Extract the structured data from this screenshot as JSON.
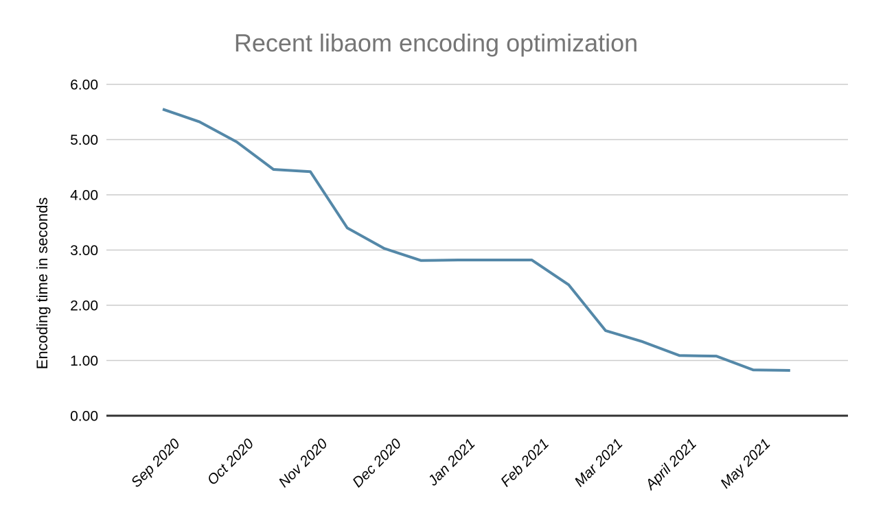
{
  "chart_data": {
    "type": "line",
    "title": "Recent libaom encoding optimization",
    "ylabel": "Encoding time in seconds",
    "xlabel": "",
    "legend": "none",
    "grid": "horizontal",
    "ylim": [
      0,
      6
    ],
    "y_ticks": [
      0,
      1,
      2,
      3,
      4,
      5,
      6
    ],
    "y_tick_labels": [
      "0.00",
      "1.00",
      "2.00",
      "3.00",
      "4.00",
      "5.00",
      "6.00"
    ],
    "x_tick_labels": [
      "Sep 2020",
      "Oct 2020",
      "Nov 2020",
      "Dec 2020",
      "Jan 2021",
      "Feb 2021",
      "Mar 2021",
      "April 2021",
      "May 2021"
    ],
    "series": [
      {
        "name": "Encoding time",
        "x": [
          0,
          0.5,
          1,
          1.5,
          2,
          2.5,
          3,
          3.5,
          4,
          4.5,
          5,
          5.5,
          6,
          6.5,
          7,
          7.5,
          8,
          8.5
        ],
        "values": [
          5.55,
          5.32,
          4.96,
          4.46,
          4.42,
          3.4,
          3.03,
          2.81,
          2.82,
          2.82,
          2.82,
          2.37,
          1.54,
          1.34,
          1.09,
          1.08,
          0.83,
          0.82
        ]
      }
    ],
    "colors": {
      "line": "#5488a8",
      "gridline": "#cccccc",
      "axis": "#333333",
      "title_text": "#757575",
      "tick_text": "#000000"
    }
  }
}
